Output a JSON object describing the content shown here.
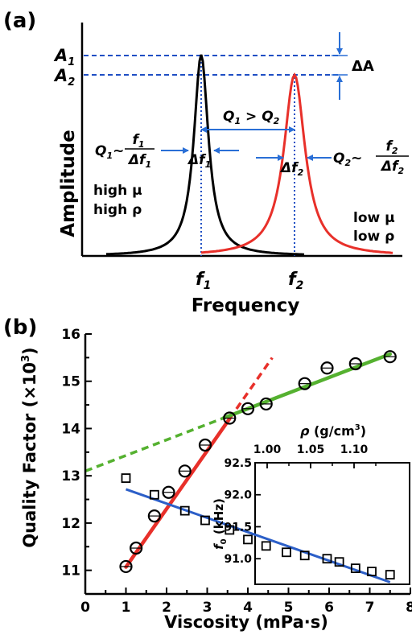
{
  "panel_a": {
    "label": "(a)",
    "ylabel": "Amplitude",
    "xlabel": "Frequency",
    "peak_labels": [
      "A",
      "1",
      "A",
      "2"
    ],
    "delta_a": "ΔA",
    "q_compare": [
      "Q",
      "1",
      " > Q",
      "2"
    ],
    "q1": {
      "lhs": [
        "Q",
        "1",
        "~"
      ],
      "num": [
        "f",
        "1"
      ],
      "den": [
        "Δf",
        "1"
      ]
    },
    "q2": {
      "lhs": [
        "Q",
        "2",
        "~"
      ],
      "num": [
        "f",
        "2"
      ],
      "den": [
        "Δf",
        "2"
      ]
    },
    "df1": [
      "Δf",
      "1"
    ],
    "df2": [
      "Δf",
      "2"
    ],
    "f1": [
      "f",
      "1"
    ],
    "f2": [
      "f",
      "2"
    ],
    "left_text": [
      "high μ",
      "high ρ"
    ],
    "right_text": [
      "low μ",
      "low ρ"
    ],
    "colors": {
      "curve1": "#000000",
      "curve2": "#e8302a",
      "guides": "#1f4fc4",
      "arrows": "#2a6fd6"
    }
  },
  "chart_data": [
    {
      "type": "scatter",
      "label": "(b)",
      "xlabel": "Viscosity (mPa·s)",
      "ylabel": "Quality Factor (×10",
      "ylabel_sup": "3",
      "ylabel_end": ")",
      "xlim": [
        0,
        8
      ],
      "ylim": [
        10.5,
        16
      ],
      "xticks": [
        "0",
        "1",
        "2",
        "3",
        "4",
        "5",
        "6",
        "7",
        "8"
      ],
      "yticks": [
        "11",
        "12",
        "13",
        "14",
        "15",
        "16"
      ],
      "x": [
        1.0,
        1.25,
        1.7,
        2.05,
        2.45,
        2.95,
        3.55,
        4.0,
        4.45,
        5.4,
        5.95,
        6.65,
        7.5
      ],
      "y": [
        11.08,
        11.47,
        12.15,
        12.65,
        13.1,
        13.65,
        14.22,
        14.42,
        14.52,
        14.95,
        15.28,
        15.37,
        15.52
      ],
      "fit_lines": [
        {
          "color": "#e8302a",
          "solid_x": [
            1.0,
            3.55
          ],
          "dashed_x": [
            3.55,
            4.6
          ],
          "slope": 1.23,
          "intercept": 9.84
        },
        {
          "color": "#55b130",
          "solid_x": [
            3.4,
            7.5
          ],
          "dashed_x": [
            0,
            3.4
          ],
          "slope": 0.33,
          "intercept": 13.1
        }
      ]
    },
    {
      "type": "scatter",
      "inset": true,
      "ylabel": [
        "f",
        "0",
        " (kHz)"
      ],
      "top_xlabel": [
        "ρ",
        " (g/cm",
        "3",
        ")"
      ],
      "ylim": [
        90.6,
        92.5
      ],
      "yticks": [
        "92.5",
        "92.0",
        "91.5",
        "91.0"
      ],
      "top_ticks": [
        "1.00",
        "1.05",
        "1.10"
      ],
      "x": [
        1.0,
        1.7,
        2.45,
        2.95,
        3.55,
        4.0,
        4.45,
        4.95,
        5.4,
        5.95,
        6.25,
        6.65,
        7.05,
        7.5
      ],
      "y": [
        92.26,
        92.0,
        91.75,
        91.6,
        91.45,
        91.3,
        91.2,
        91.1,
        91.05,
        91.0,
        90.95,
        90.85,
        90.8,
        90.75
      ],
      "fit_color": "#2c5fc8"
    }
  ]
}
